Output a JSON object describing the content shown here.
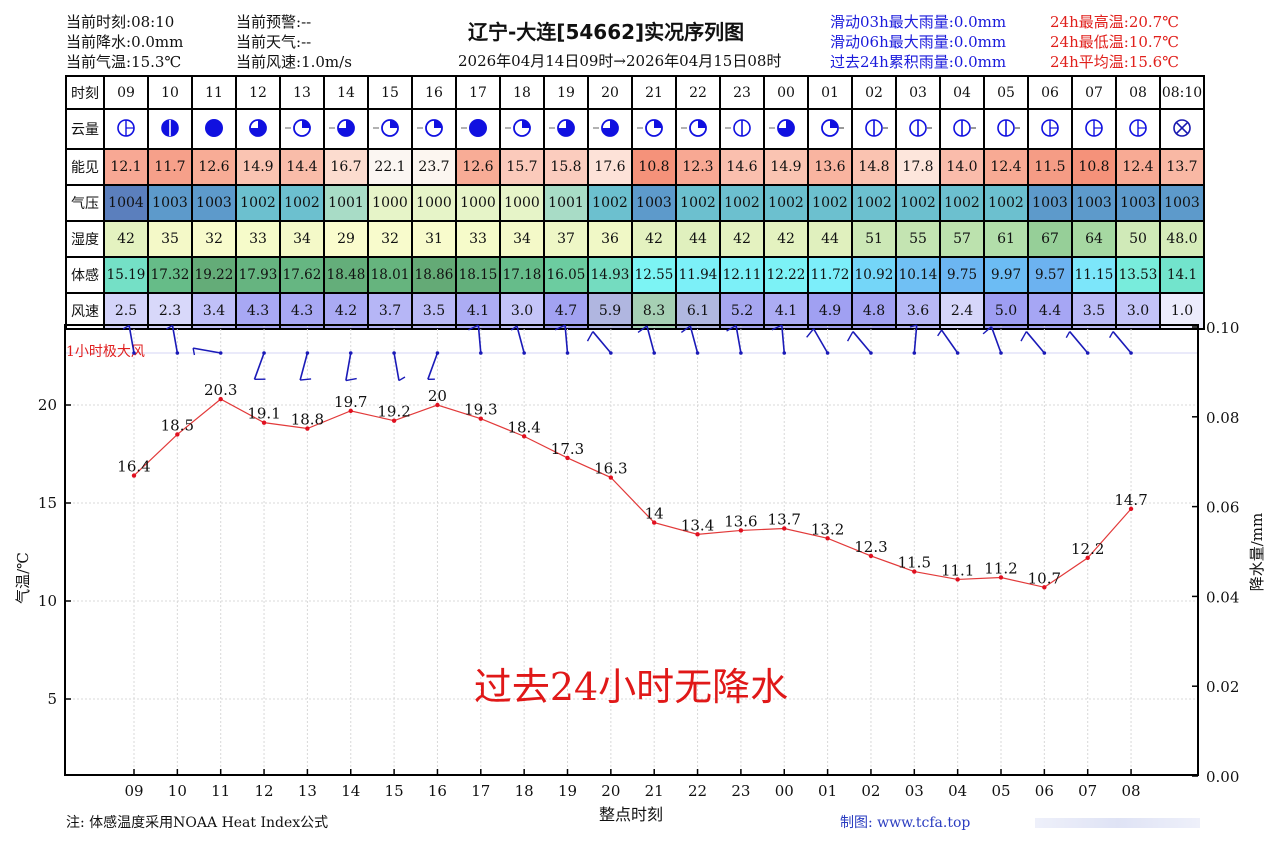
{
  "header": {
    "left": [
      {
        "label": "当前时刻",
        "value": "08:10"
      },
      {
        "label": "当前降水",
        "value": "0.0mm"
      },
      {
        "label": "当前气温",
        "value": "15.3℃"
      }
    ],
    "mid": [
      {
        "label": "当前预警",
        "value": "--"
      },
      {
        "label": "当前天气",
        "value": "--"
      },
      {
        "label": "当前风速",
        "value": "1.0m/s"
      }
    ],
    "title": "辽宁-大连[54662]实况序列图",
    "subtitle": "2026年04月14日09时→2026年04月15日08时",
    "rain_stats": [
      {
        "label": "滑动03h最大雨量",
        "value": "0.0mm"
      },
      {
        "label": "滑动06h最大雨量",
        "value": "0.0mm"
      },
      {
        "label": "过去24h累积雨量",
        "value": "0.0mm"
      }
    ],
    "temp_stats": [
      {
        "label": "24h最高温",
        "value": "20.7℃"
      },
      {
        "label": "24h最低温",
        "value": "10.7℃"
      },
      {
        "label": "24h平均温",
        "value": "15.6℃"
      }
    ]
  },
  "table": {
    "row_labels": [
      "时刻",
      "云量",
      "能见",
      "气压",
      "湿度",
      "体感",
      "风速"
    ],
    "times": [
      "09",
      "10",
      "11",
      "12",
      "13",
      "14",
      "15",
      "16",
      "17",
      "18",
      "19",
      "20",
      "21",
      "22",
      "23",
      "00",
      "01",
      "02",
      "03",
      "04",
      "05",
      "06",
      "07",
      "08",
      "08:10"
    ],
    "cloud": [
      {
        "fill": 0.1,
        "tick": "left-none",
        "type": "cross"
      },
      {
        "fill": 0.9,
        "tick": "none",
        "type": "bar"
      },
      {
        "fill": 1.0,
        "tick": "none",
        "type": "full"
      },
      {
        "fill": 0.75,
        "tick": "none",
        "type": "q"
      },
      {
        "fill": 0.25,
        "tick": "left",
        "type": "q"
      },
      {
        "fill": 0.75,
        "tick": "left",
        "type": "q"
      },
      {
        "fill": 0.25,
        "tick": "left",
        "type": "q"
      },
      {
        "fill": 0.25,
        "tick": "left",
        "type": "q"
      },
      {
        "fill": 1.0,
        "tick": "left",
        "type": "full"
      },
      {
        "fill": 0.25,
        "tick": "left",
        "type": "q"
      },
      {
        "fill": 0.75,
        "tick": "left",
        "type": "q"
      },
      {
        "fill": 0.75,
        "tick": "left",
        "type": "q"
      },
      {
        "fill": 0.25,
        "tick": "left",
        "type": "q"
      },
      {
        "fill": 0.25,
        "tick": "left",
        "type": "q"
      },
      {
        "fill": 0.0,
        "tick": "left",
        "type": "bar"
      },
      {
        "fill": 0.75,
        "tick": "left",
        "type": "q"
      },
      {
        "fill": 0.25,
        "tick": "right",
        "type": "q"
      },
      {
        "fill": 0.0,
        "tick": "right",
        "type": "bar"
      },
      {
        "fill": 0.0,
        "tick": "right",
        "type": "bar"
      },
      {
        "fill": 0.0,
        "tick": "right",
        "type": "bar"
      },
      {
        "fill": 0.0,
        "tick": "right",
        "type": "bar"
      },
      {
        "fill": 0.0,
        "tick": "none",
        "type": "cross"
      },
      {
        "fill": 0.0,
        "tick": "none",
        "type": "cross"
      },
      {
        "fill": 0.0,
        "tick": "none",
        "type": "cross"
      },
      {
        "fill": 0.0,
        "tick": "none",
        "type": "x"
      }
    ],
    "visibility": [
      "12.1",
      "11.7",
      "12.6",
      "14.9",
      "14.4",
      "16.7",
      "22.1",
      "23.7",
      "12.6",
      "15.7",
      "15.8",
      "17.6",
      "10.8",
      "12.3",
      "14.6",
      "14.9",
      "13.6",
      "14.8",
      "17.8",
      "14.0",
      "12.4",
      "11.5",
      "10.8",
      "12.4",
      "13.7"
    ],
    "visibility_colors": [
      "#f8a894",
      "#f6a08a",
      "#f8ac96",
      "#fac4b2",
      "#f9bca9",
      "#fcdccf",
      "#fbf6f2",
      "#fcf6f0",
      "#f8ac96",
      "#fbcabb",
      "#fbccbe",
      "#fde2d8",
      "#f5927a",
      "#f8a893",
      "#fabfae",
      "#fac4b2",
      "#f9b4a0",
      "#fac3b1",
      "#fde6dc",
      "#fabcab",
      "#f8aa94",
      "#f59c85",
      "#f5927a",
      "#f8aa94",
      "#f9b8a4"
    ],
    "pressure": [
      "1004",
      "1003",
      "1003",
      "1002",
      "1002",
      "1001",
      "1000",
      "1000",
      "1000",
      "1000",
      "1001",
      "1002",
      "1003",
      "1002",
      "1002",
      "1002",
      "1002",
      "1002",
      "1002",
      "1002",
      "1002",
      "1003",
      "1003",
      "1003",
      "1003"
    ],
    "pressure_colors": [
      "#5b7fbd",
      "#5d9acb",
      "#5d9acb",
      "#6cc0cf",
      "#6cc0cf",
      "#a8dcc6",
      "#e6f4c8",
      "#e6f4c8",
      "#e6f4c8",
      "#e6f4c8",
      "#a8dcc6",
      "#6cc0cf",
      "#5d9acb",
      "#6cc0cf",
      "#6cc0cf",
      "#6cc0cf",
      "#6cc0cf",
      "#6cc0cf",
      "#6cc0cf",
      "#6cc0cf",
      "#6cc0cf",
      "#5d9acb",
      "#5d9acb",
      "#5d9acb",
      "#5d9acb"
    ],
    "humidity": [
      "42",
      "35",
      "32",
      "33",
      "34",
      "29",
      "32",
      "31",
      "33",
      "34",
      "37",
      "36",
      "42",
      "44",
      "42",
      "42",
      "44",
      "51",
      "55",
      "57",
      "61",
      "67",
      "64",
      "50",
      "48.0"
    ],
    "humidity_colors": [
      "#e4f2c0",
      "#f4f9c8",
      "#f8fbcc",
      "#f6fbca",
      "#f4f9c8",
      "#fafccd",
      "#f8fbcc",
      "#f8fbcc",
      "#f6fbca",
      "#f4f9c8",
      "#eef7c6",
      "#f0f8c6",
      "#e4f2c0",
      "#e0f0be",
      "#e4f2c0",
      "#e4f2c0",
      "#e0f0be",
      "#cce8b6",
      "#c4e4b2",
      "#bce2ae",
      "#b2deaa",
      "#96cf98",
      "#a6d8a2",
      "#d0eab8",
      "#d6ecba"
    ],
    "feels_like": [
      "15.19",
      "17.32",
      "19.22",
      "17.93",
      "17.62",
      "18.48",
      "18.01",
      "18.86",
      "18.15",
      "17.18",
      "16.05",
      "14.93",
      "12.55",
      "11.94",
      "12.11",
      "12.22",
      "11.72",
      "10.92",
      "10.14",
      "9.75",
      "9.97",
      "9.57",
      "11.15",
      "13.53",
      "14.1"
    ],
    "feels_like_colors": [
      "#74e0c6",
      "#66bc88",
      "#64ac78",
      "#66b480",
      "#66b682",
      "#64ae7a",
      "#66b47e",
      "#64aa76",
      "#64b07c",
      "#66bc8a",
      "#6ccca0",
      "#74dcc0",
      "#7cf4f4",
      "#7cf0f8",
      "#7cf0f8",
      "#7cf2f6",
      "#7ceefa",
      "#74d6f8",
      "#70c0f4",
      "#6cb6f2",
      "#6cbcf4",
      "#6cb2f0",
      "#7ce6fa",
      "#78ecdc",
      "#72e4cc"
    ],
    "wind": [
      "2.5",
      "2.3",
      "3.4",
      "4.3",
      "4.3",
      "4.2",
      "3.7",
      "3.5",
      "4.1",
      "3.0",
      "4.7",
      "5.9",
      "8.3",
      "6.1",
      "5.2",
      "4.1",
      "4.9",
      "4.8",
      "3.6",
      "2.4",
      "5.0",
      "4.4",
      "3.5",
      "3.0",
      "1.0"
    ],
    "wind_colors": [
      "#d4d4fa",
      "#d8d8fa",
      "#c0c0f8",
      "#a8a8f4",
      "#a8a8f4",
      "#aaaaf4",
      "#b6b6f6",
      "#babaf6",
      "#acacf4",
      "#c4c4f8",
      "#a2a2f2",
      "#b0b6e0",
      "#a6d0b4",
      "#b0b8e0",
      "#a6a6f0",
      "#acacf4",
      "#a0a0f2",
      "#a2a2f2",
      "#b8b8f6",
      "#d6d6fa",
      "#9e9ef2",
      "#a6a6f4",
      "#babaf6",
      "#c4c4f8",
      "#ececfc"
    ]
  },
  "chart_data": {
    "type": "line",
    "title": "辽宁-大连[54662]实况序列图",
    "x": [
      "09",
      "10",
      "11",
      "12",
      "13",
      "14",
      "15",
      "16",
      "17",
      "18",
      "19",
      "20",
      "21",
      "22",
      "23",
      "00",
      "01",
      "02",
      "03",
      "04",
      "05",
      "06",
      "07",
      "08"
    ],
    "series": [
      {
        "name": "气温",
        "color": "#e23a3a",
        "values": [
          16.4,
          18.5,
          20.3,
          19.1,
          18.8,
          19.7,
          19.2,
          20.0,
          19.3,
          18.4,
          17.3,
          16.3,
          14.0,
          13.4,
          13.6,
          13.7,
          13.2,
          12.3,
          11.5,
          11.1,
          11.2,
          10.7,
          12.2,
          14.7
        ]
      }
    ],
    "wind_barbs": {
      "label": "1小时极大风",
      "points": [
        {
          "x": "09",
          "dir": 350,
          "speed": 2.5
        },
        {
          "x": "10",
          "dir": 350,
          "speed": 2.3
        },
        {
          "x": "11",
          "dir": 280,
          "speed": 3.4
        },
        {
          "x": "12",
          "dir": 200,
          "speed": 4.3
        },
        {
          "x": "13",
          "dir": 195,
          "speed": 4.3
        },
        {
          "x": "14",
          "dir": 190,
          "speed": 4.2
        },
        {
          "x": "15",
          "dir": 170,
          "speed": 3.7
        },
        {
          "x": "16",
          "dir": 200,
          "speed": 3.5
        },
        {
          "x": "17",
          "dir": 355,
          "speed": 4.1
        },
        {
          "x": "18",
          "dir": 345,
          "speed": 3.0
        },
        {
          "x": "19",
          "dir": 355,
          "speed": 4.7
        },
        {
          "x": "20",
          "dir": 320,
          "speed": 5.9
        },
        {
          "x": "21",
          "dir": 345,
          "speed": 8.3
        },
        {
          "x": "22",
          "dir": 345,
          "speed": 6.1
        },
        {
          "x": "23",
          "dir": 350,
          "speed": 5.2
        },
        {
          "x": "00",
          "dir": 355,
          "speed": 4.1
        },
        {
          "x": "01",
          "dir": 330,
          "speed": 4.9
        },
        {
          "x": "02",
          "dir": 320,
          "speed": 4.8
        },
        {
          "x": "03",
          "dir": 5,
          "speed": 3.6
        },
        {
          "x": "04",
          "dir": 325,
          "speed": 2.4
        },
        {
          "x": "05",
          "dir": 340,
          "speed": 5.0
        },
        {
          "x": "06",
          "dir": 320,
          "speed": 4.4
        },
        {
          "x": "07",
          "dir": 320,
          "speed": 3.5
        },
        {
          "x": "08",
          "dir": 320,
          "speed": 3.0
        }
      ]
    },
    "xlabel": "整点时刻",
    "ylabel": "气温/℃",
    "ylabel_right": "降水量/mm",
    "yticks": [
      5,
      10,
      15,
      20
    ],
    "yticks_right": [
      "0.00",
      "0.02",
      "0.04",
      "0.06",
      "0.08",
      "0.10"
    ],
    "ylim": [
      1.1,
      24.0
    ],
    "ylim_right": [
      0.0,
      0.1
    ],
    "grid": true,
    "annotation": "过去24小时无降水"
  },
  "footer": {
    "note": "注: 体感温度采用NOAA Heat Index公式",
    "credit": "制图: www.tcfa.top"
  }
}
